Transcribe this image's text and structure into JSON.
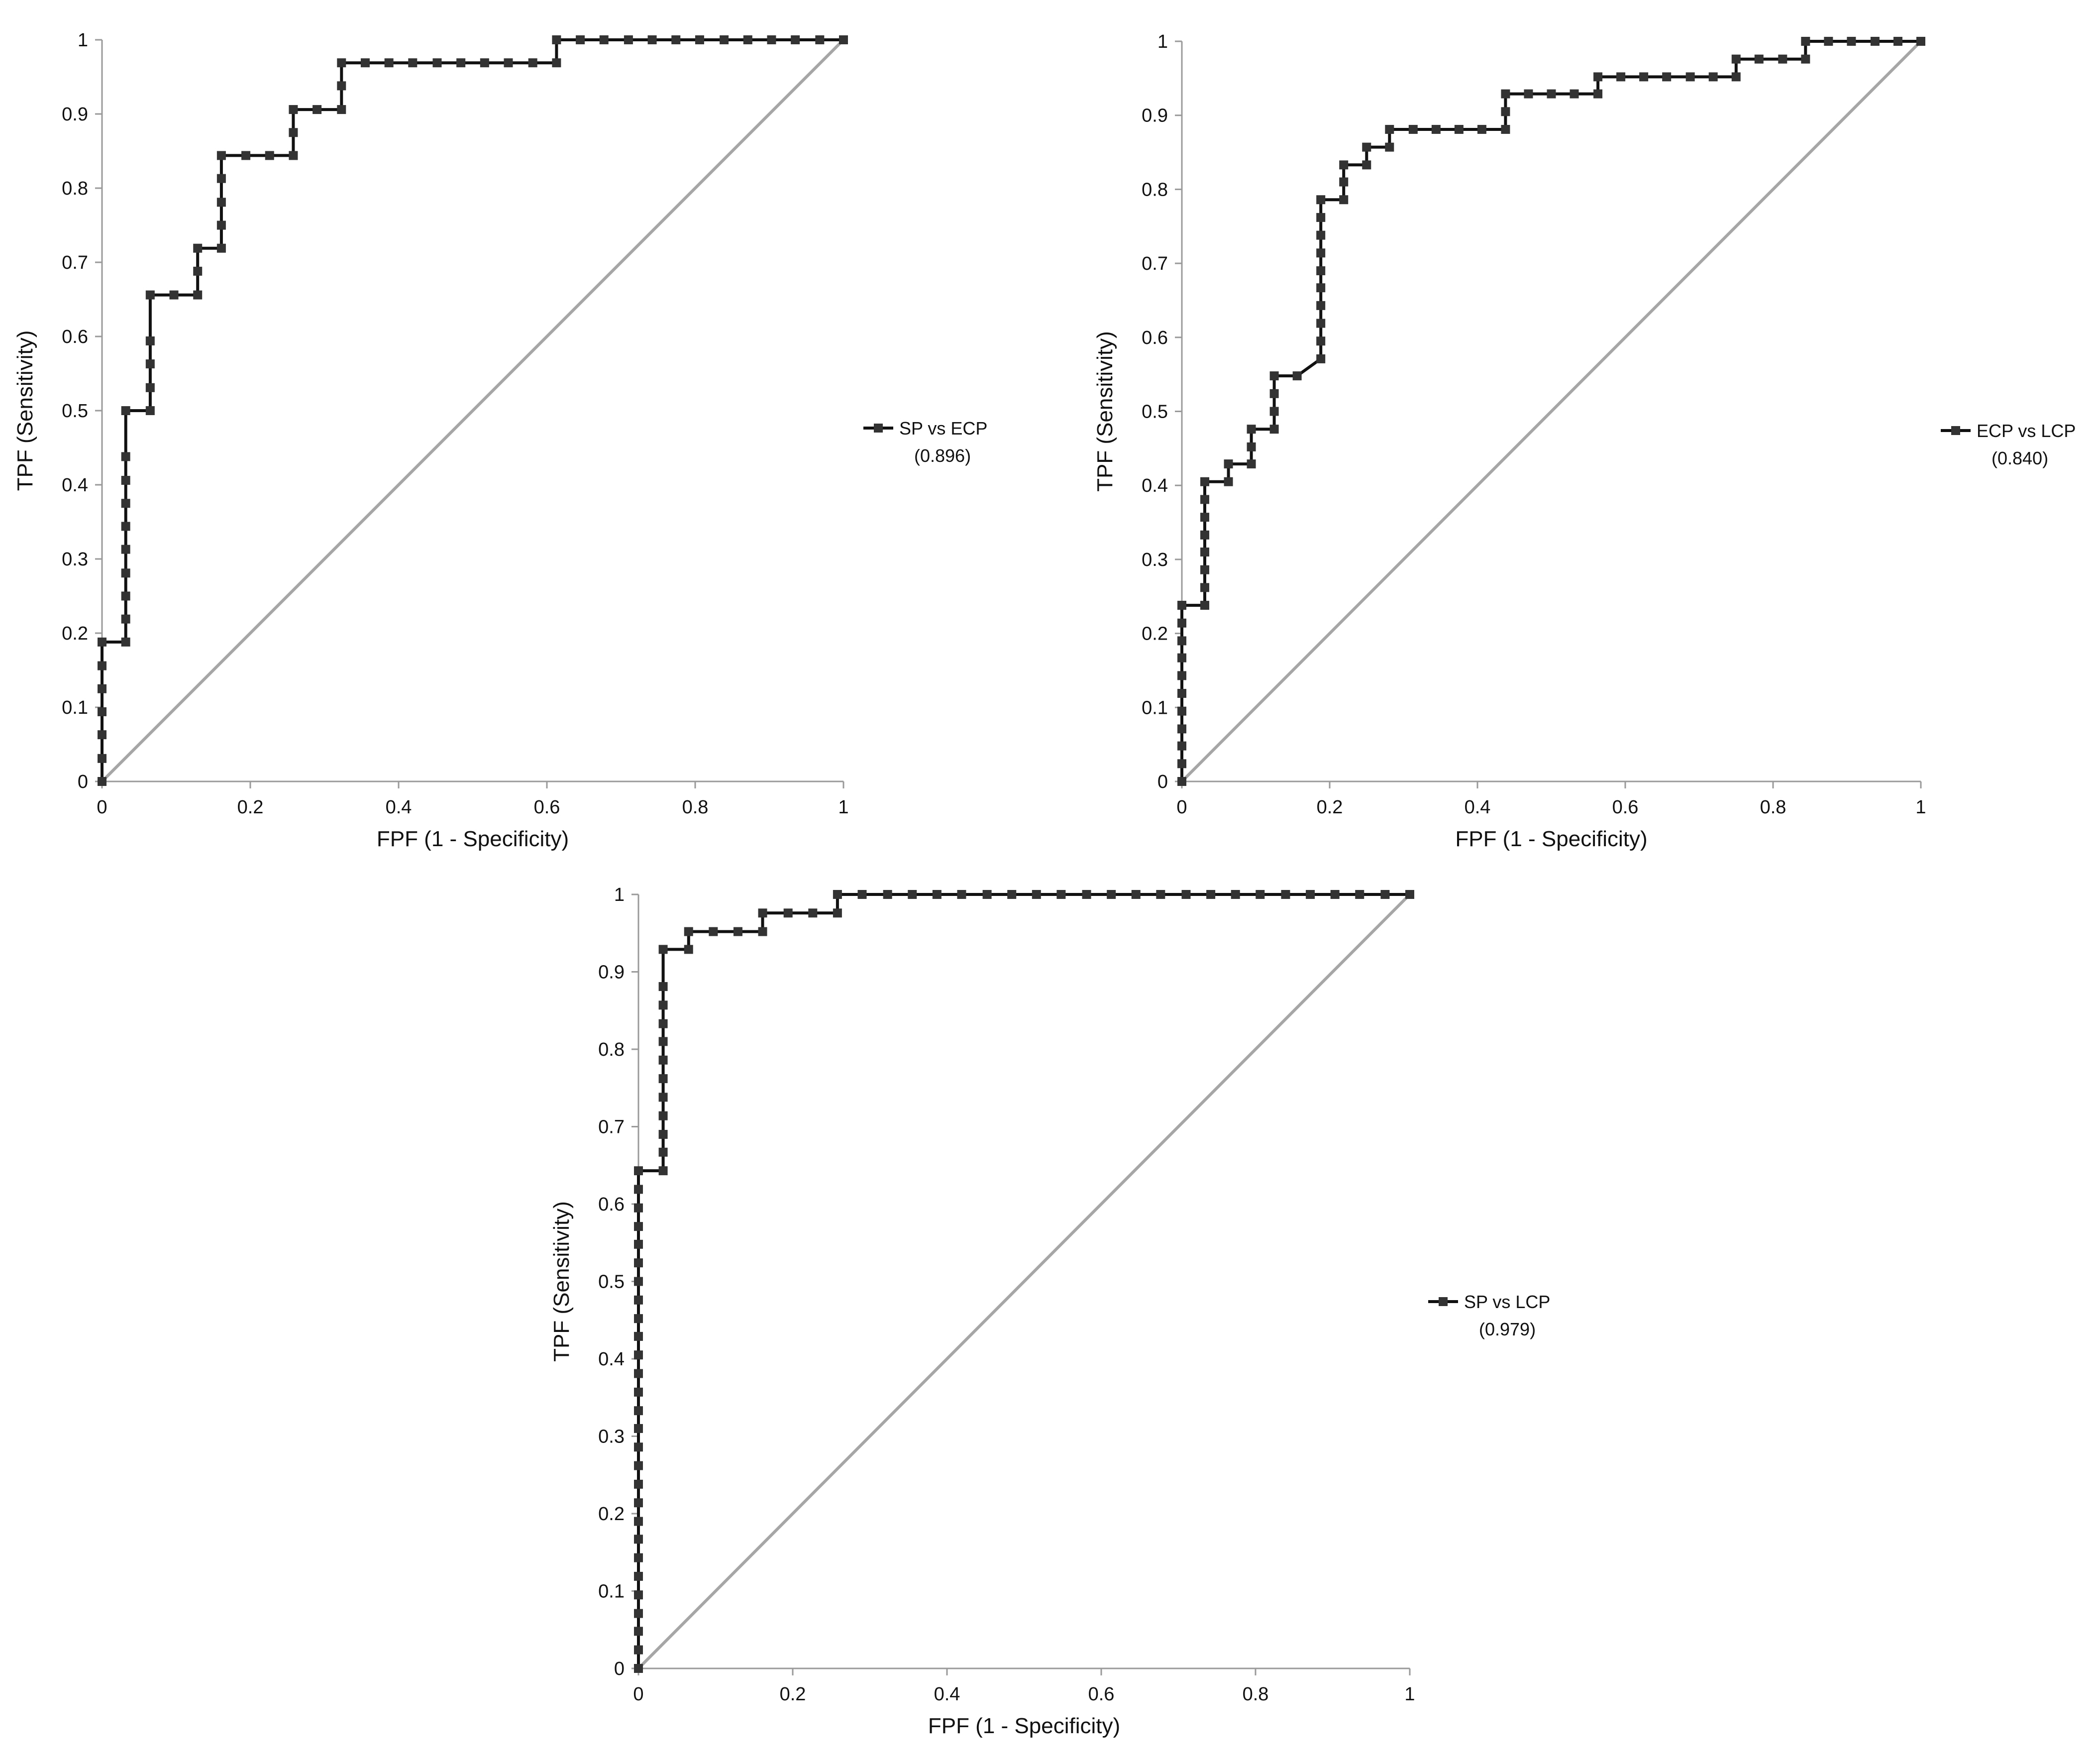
{
  "colors": {
    "series": "#111111",
    "marker": "#333333",
    "diagonal": "#a6a6a6",
    "axis": "#9a9a9a",
    "text": "#111111"
  },
  "chart_data": [
    {
      "type": "line",
      "title": "",
      "xlabel": "FPF (1 - Specificity)",
      "ylabel": "TPF (Sensitivity)",
      "xlim": [
        0,
        1
      ],
      "ylim": [
        0,
        1
      ],
      "x_ticks": [
        "0",
        "0.2",
        "0.4",
        "0.6",
        "0.8",
        "1"
      ],
      "y_ticks": [
        "0",
        "0.1",
        "0.2",
        "0.3",
        "0.4",
        "0.5",
        "0.6",
        "0.7",
        "0.8",
        "0.9",
        "1"
      ],
      "grid": false,
      "legend_position": "right",
      "legend": {
        "name": "SP vs ECP",
        "auc": "(0.896)"
      },
      "reference_line": {
        "x": [
          0,
          1
        ],
        "y": [
          0,
          1
        ]
      },
      "series": [
        {
          "name": "SP vs ECP",
          "x": [
            0,
            0,
            0,
            0,
            0,
            0,
            0,
            0.032,
            0.032,
            0.032,
            0.032,
            0.032,
            0.032,
            0.032,
            0.032,
            0.032,
            0.032,
            0.065,
            0.065,
            0.065,
            0.065,
            0.065,
            0.097,
            0.129,
            0.129,
            0.129,
            0.161,
            0.161,
            0.161,
            0.161,
            0.161,
            0.194,
            0.226,
            0.258,
            0.258,
            0.258,
            0.29,
            0.323,
            0.323,
            0.323,
            0.355,
            0.387,
            0.419,
            0.452,
            0.484,
            0.516,
            0.548,
            0.581,
            0.613,
            0.613,
            0.645,
            0.677,
            0.71,
            0.742,
            0.774,
            0.806,
            0.839,
            0.871,
            0.903,
            0.935,
            0.968,
            1
          ],
          "y": [
            0,
            0.031,
            0.063,
            0.094,
            0.125,
            0.156,
            0.188,
            0.188,
            0.219,
            0.25,
            0.281,
            0.313,
            0.344,
            0.375,
            0.406,
            0.438,
            0.5,
            0.5,
            0.531,
            0.563,
            0.594,
            0.656,
            0.656,
            0.656,
            0.688,
            0.719,
            0.719,
            0.75,
            0.781,
            0.813,
            0.844,
            0.844,
            0.844,
            0.844,
            0.875,
            0.906,
            0.906,
            0.906,
            0.938,
            0.969,
            0.969,
            0.969,
            0.969,
            0.969,
            0.969,
            0.969,
            0.969,
            0.969,
            0.969,
            1,
            1,
            1,
            1,
            1,
            1,
            1,
            1,
            1,
            1,
            1,
            1,
            1
          ]
        }
      ]
    },
    {
      "type": "line",
      "title": "",
      "xlabel": "FPF (1 - Specificity)",
      "ylabel": "TPF (Sensitivity)",
      "xlim": [
        0,
        1
      ],
      "ylim": [
        0,
        1
      ],
      "x_ticks": [
        "0",
        "0.2",
        "0.4",
        "0.6",
        "0.8",
        "1"
      ],
      "y_ticks": [
        "0",
        "0.1",
        "0.2",
        "0.3",
        "0.4",
        "0.5",
        "0.6",
        "0.7",
        "0.8",
        "0.9",
        "1"
      ],
      "grid": false,
      "legend_position": "right",
      "legend": {
        "name": "ECP vs LCP",
        "auc": "(0.840)"
      },
      "reference_line": {
        "x": [
          0,
          1
        ],
        "y": [
          0,
          1
        ]
      },
      "series": [
        {
          "name": "ECP vs LCP",
          "x": [
            0,
            0,
            0,
            0,
            0,
            0,
            0,
            0,
            0,
            0,
            0,
            0,
            0.031,
            0.031,
            0.031,
            0.031,
            0.031,
            0.031,
            0.031,
            0.031,
            0.063,
            0.063,
            0.094,
            0.094,
            0.094,
            0.125,
            0.125,
            0.125,
            0.125,
            0.156,
            0.188,
            0.188,
            0.188,
            0.188,
            0.188,
            0.188,
            0.188,
            0.188,
            0.188,
            0.188,
            0.219,
            0.219,
            0.219,
            0.25,
            0.25,
            0.281,
            0.281,
            0.313,
            0.344,
            0.375,
            0.406,
            0.438,
            0.438,
            0.438,
            0.469,
            0.5,
            0.531,
            0.563,
            0.563,
            0.594,
            0.625,
            0.656,
            0.688,
            0.719,
            0.75,
            0.75,
            0.781,
            0.813,
            0.844,
            0.844,
            0.875,
            0.906,
            0.938,
            0.969,
            1
          ],
          "y": [
            0,
            0.024,
            0.048,
            0.071,
            0.095,
            0.119,
            0.143,
            0.167,
            0.19,
            0.214,
            0.238,
            0.238,
            0.238,
            0.262,
            0.286,
            0.31,
            0.333,
            0.357,
            0.381,
            0.405,
            0.405,
            0.429,
            0.429,
            0.452,
            0.476,
            0.476,
            0.5,
            0.524,
            0.548,
            0.548,
            0.571,
            0.595,
            0.619,
            0.643,
            0.667,
            0.69,
            0.714,
            0.738,
            0.762,
            0.786,
            0.786,
            0.81,
            0.833,
            0.833,
            0.857,
            0.857,
            0.881,
            0.881,
            0.881,
            0.881,
            0.881,
            0.881,
            0.905,
            0.929,
            0.929,
            0.929,
            0.929,
            0.929,
            0.952,
            0.952,
            0.952,
            0.952,
            0.952,
            0.952,
            0.952,
            0.976,
            0.976,
            0.976,
            0.976,
            1,
            1,
            1,
            1,
            1,
            1
          ]
        }
      ]
    },
    {
      "type": "line",
      "title": "",
      "xlabel": "FPF (1 - Specificity)",
      "ylabel": "TPF (Sensitivity)",
      "xlim": [
        0,
        1
      ],
      "ylim": [
        0,
        1
      ],
      "x_ticks": [
        "0",
        "0.2",
        "0.4",
        "0.6",
        "0.8",
        "1"
      ],
      "y_ticks": [
        "0",
        "0.1",
        "0.2",
        "0.3",
        "0.4",
        "0.5",
        "0.6",
        "0.7",
        "0.8",
        "0.9",
        "1"
      ],
      "grid": false,
      "legend_position": "right",
      "legend": {
        "name": "SP vs LCP",
        "auc": "(0.979)"
      },
      "reference_line": {
        "x": [
          0,
          1
        ],
        "y": [
          0,
          1
        ]
      },
      "series": [
        {
          "name": "SP vs LCP",
          "x": [
            0,
            0,
            0,
            0,
            0,
            0,
            0,
            0,
            0,
            0,
            0,
            0,
            0,
            0,
            0,
            0,
            0,
            0,
            0,
            0,
            0,
            0,
            0,
            0,
            0,
            0,
            0,
            0,
            0.032,
            0.032,
            0.032,
            0.032,
            0.032,
            0.032,
            0.032,
            0.032,
            0.032,
            0.032,
            0.032,
            0.032,
            0.065,
            0.065,
            0.097,
            0.129,
            0.161,
            0.161,
            0.194,
            0.226,
            0.258,
            0.258,
            0.29,
            0.323,
            0.355,
            0.387,
            0.419,
            0.452,
            0.484,
            0.516,
            0.548,
            0.581,
            0.613,
            0.645,
            0.677,
            0.71,
            0.742,
            0.774,
            0.806,
            0.839,
            0.871,
            0.903,
            0.935,
            0.968,
            1
          ],
          "y": [
            0,
            0.024,
            0.048,
            0.071,
            0.095,
            0.119,
            0.143,
            0.167,
            0.19,
            0.214,
            0.238,
            0.262,
            0.286,
            0.31,
            0.333,
            0.357,
            0.381,
            0.405,
            0.429,
            0.452,
            0.476,
            0.5,
            0.524,
            0.548,
            0.571,
            0.595,
            0.619,
            0.643,
            0.643,
            0.667,
            0.69,
            0.714,
            0.738,
            0.762,
            0.786,
            0.81,
            0.833,
            0.857,
            0.881,
            0.929,
            0.929,
            0.952,
            0.952,
            0.952,
            0.952,
            0.976,
            0.976,
            0.976,
            0.976,
            1,
            1,
            1,
            1,
            1,
            1,
            1,
            1,
            1,
            1,
            1,
            1,
            1,
            1,
            1,
            1,
            1,
            1,
            1,
            1,
            1,
            1,
            1,
            1
          ]
        }
      ]
    }
  ]
}
